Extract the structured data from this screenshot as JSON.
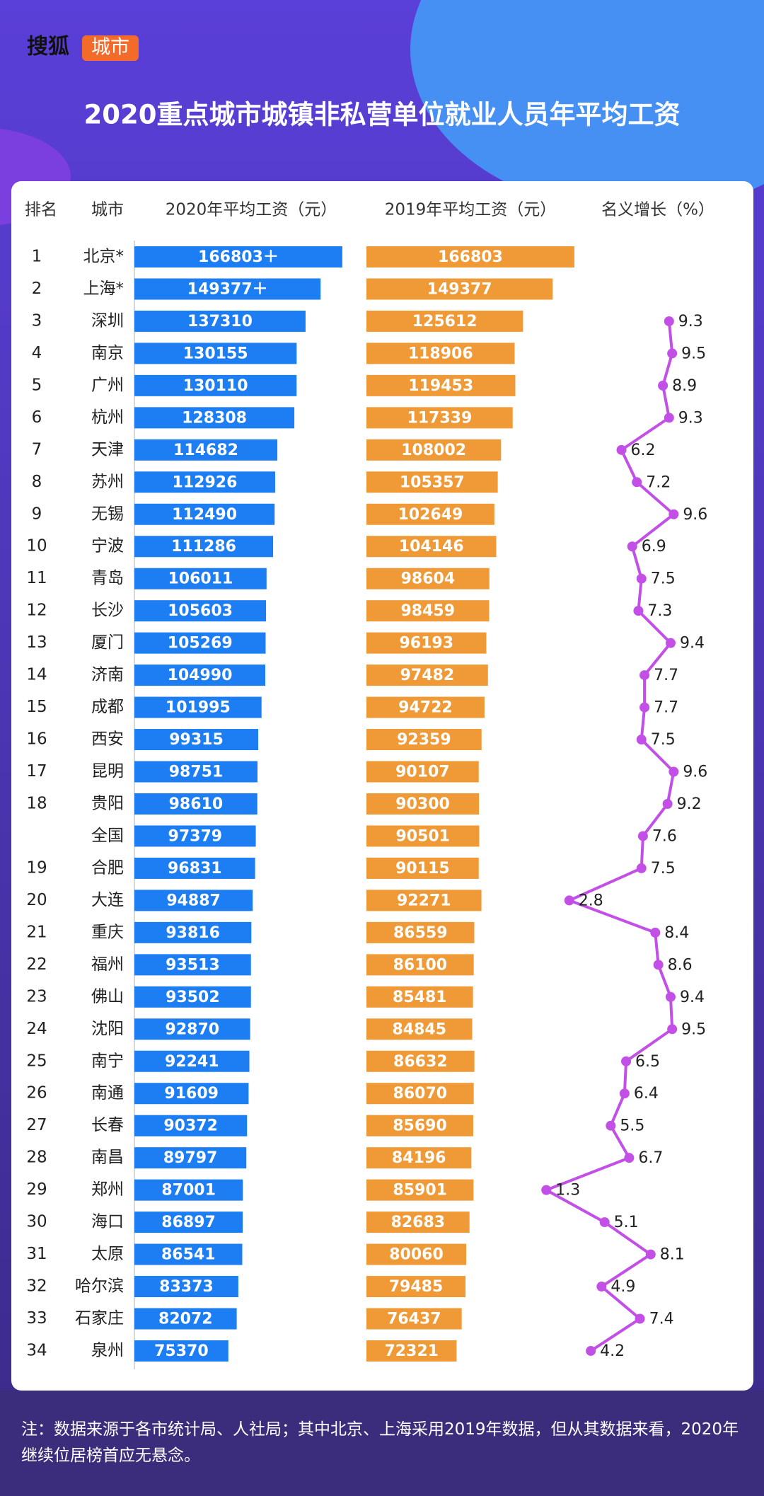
{
  "logo": {
    "brand": "搜狐",
    "channel": "城市"
  },
  "chart_data": {
    "type": "bar",
    "title": "2020重点城市城镇非私营单位就业人员年平均工资",
    "rank_header": "排名",
    "category_header": "城市",
    "ranks": [
      1,
      2,
      3,
      4,
      5,
      6,
      7,
      8,
      9,
      10,
      11,
      12,
      13,
      14,
      15,
      16,
      17,
      18,
      null,
      19,
      20,
      21,
      22,
      23,
      24,
      25,
      26,
      27,
      28,
      29,
      30,
      31,
      32,
      33,
      34
    ],
    "categories": [
      "北京*",
      "上海*",
      "深圳",
      "南京",
      "广州",
      "杭州",
      "天津",
      "苏州",
      "无锡",
      "宁波",
      "青岛",
      "长沙",
      "厦门",
      "济南",
      "成都",
      "西安",
      "昆明",
      "贵阳",
      "全国",
      "合肥",
      "大连",
      "重庆",
      "福州",
      "佛山",
      "沈阳",
      "南宁",
      "南通",
      "长春",
      "南昌",
      "郑州",
      "海口",
      "太原",
      "哈尔滨",
      "石家庄",
      "泉州"
    ],
    "series": [
      {
        "name": "2020年平均工资（元）",
        "color": "#1c7ef2",
        "values": [
          166803,
          149377,
          137310,
          130155,
          130110,
          128308,
          114682,
          112926,
          112490,
          111286,
          106011,
          105603,
          105269,
          104990,
          101995,
          99315,
          98751,
          98610,
          97379,
          96831,
          94887,
          93816,
          93513,
          93502,
          92870,
          92241,
          91609,
          90372,
          89797,
          87001,
          86897,
          86541,
          83373,
          82072,
          75370
        ],
        "value_labels": [
          "166803＋",
          "149377＋",
          "137310",
          "130155",
          "130110",
          "128308",
          "114682",
          "112926",
          "112490",
          "111286",
          "106011",
          "105603",
          "105269",
          "104990",
          "101995",
          "99315",
          "98751",
          "98610",
          "97379",
          "96831",
          "94887",
          "93816",
          "93513",
          "93502",
          "92870",
          "92241",
          "91609",
          "90372",
          "89797",
          "87001",
          "86897",
          "86541",
          "83373",
          "82072",
          "75370"
        ]
      },
      {
        "name": "2019年平均工资（元）",
        "color": "#ef9a36",
        "values": [
          166803,
          149377,
          125612,
          118906,
          119453,
          117339,
          108002,
          105357,
          102649,
          104146,
          98604,
          98459,
          96193,
          97482,
          94722,
          92359,
          90107,
          90300,
          90501,
          90115,
          92271,
          86559,
          86100,
          85481,
          84845,
          86632,
          86070,
          85690,
          84196,
          85901,
          82683,
          80060,
          79485,
          76437,
          72321
        ]
      },
      {
        "name": "名义增长（%）",
        "type": "line",
        "color": "#c24fe6",
        "values": [
          null,
          null,
          9.3,
          9.5,
          8.9,
          9.3,
          6.2,
          7.2,
          9.6,
          6.9,
          7.5,
          7.3,
          9.4,
          7.7,
          7.7,
          7.5,
          9.6,
          9.2,
          7.6,
          7.5,
          2.8,
          8.4,
          8.6,
          9.4,
          9.5,
          6.5,
          6.4,
          5.5,
          6.7,
          1.3,
          5.1,
          8.1,
          4.9,
          7.4,
          4.2
        ]
      }
    ]
  },
  "note": "注：数据来源于各市统计局、人社局；其中北京、上海采用2019年数据，但从其数据来看，2020年继续位居榜首应无悬念。"
}
